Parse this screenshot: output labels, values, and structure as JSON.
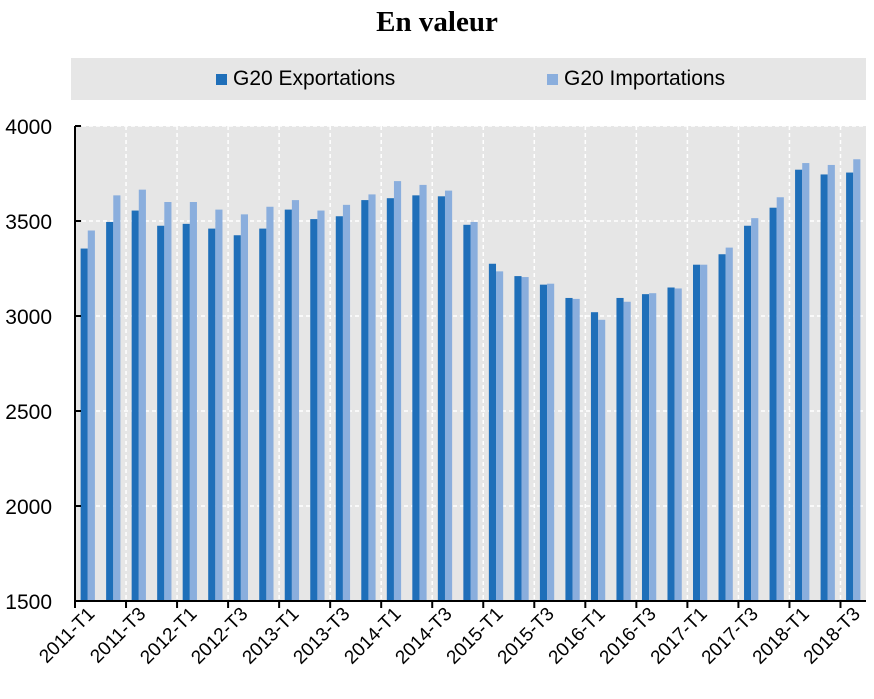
{
  "chart_data": {
    "type": "bar",
    "title": "En valeur",
    "xlabel": "",
    "ylabel": "",
    "ylim": [
      1500,
      4000
    ],
    "yticks": [
      1500,
      2000,
      2500,
      3000,
      3500,
      4000
    ],
    "grid": true,
    "legend_position": "top",
    "categories": [
      "2011-T1",
      "2011-T2",
      "2011-T3",
      "2011-T4",
      "2012-T1",
      "2012-T2",
      "2012-T3",
      "2012-T4",
      "2013-T1",
      "2013-T2",
      "2013-T3",
      "2013-T4",
      "2014-T1",
      "2014-T2",
      "2014-T3",
      "2014-T4",
      "2015-T1",
      "2015-T2",
      "2015-T3",
      "2015-T4",
      "2016-T1",
      "2016-T2",
      "2016-T3",
      "2016-T4",
      "2017-T1",
      "2017-T2",
      "2017-T3",
      "2017-T4",
      "2018-T1",
      "2018-T2",
      "2018-T3"
    ],
    "tick_labels": [
      "2011-T1",
      "2011-T3",
      "2012-T1",
      "2012-T3",
      "2013-T1",
      "2013-T3",
      "2014-T1",
      "2014-T3",
      "2015-T1",
      "2015-T3",
      "2016-T1",
      "2016-T3",
      "2017-T1",
      "2017-T3",
      "2018-T1",
      "2018-T3"
    ],
    "series": [
      {
        "name": "G20 Exportations",
        "color": "#1f6fb9",
        "values": [
          3355,
          3495,
          3555,
          3475,
          3485,
          3460,
          3425,
          3460,
          3560,
          3510,
          3525,
          3610,
          3620,
          3635,
          3630,
          3480,
          3275,
          3210,
          3165,
          3095,
          3020,
          3095,
          3115,
          3150,
          3270,
          3325,
          3475,
          3570,
          3770,
          3745,
          3755
        ]
      },
      {
        "name": "G20 Importations",
        "color": "#8aaedd",
        "values": [
          3450,
          3635,
          3665,
          3600,
          3600,
          3560,
          3535,
          3575,
          3610,
          3555,
          3585,
          3640,
          3710,
          3690,
          3660,
          3495,
          3235,
          3205,
          3170,
          3090,
          2980,
          3075,
          3120,
          3145,
          3270,
          3360,
          3515,
          3625,
          3805,
          3795,
          3825
        ]
      }
    ]
  }
}
